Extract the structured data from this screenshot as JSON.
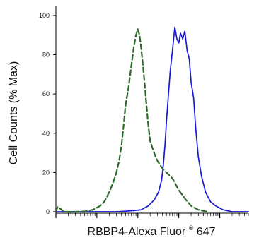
{
  "chart_data": {
    "type": "line",
    "title": "",
    "xlabel": "RBBP4-Alexa Fluor",
    "xlabel_superscript": "®",
    "xlabel_suffix": " 647",
    "ylabel": "Cell Counts (% Max)",
    "y_ticks": [
      "0",
      "20",
      "40",
      "60",
      "80",
      "100"
    ],
    "ylim": [
      0,
      105
    ],
    "x_scale": "log",
    "xlim": [
      1,
      50000
    ],
    "x_tick_labels_visible": false,
    "grid": false,
    "legend": "none",
    "series": [
      {
        "color": "#1a1ad6",
        "style": "solid",
        "x": [
          1,
          10,
          30,
          70,
          120,
          180,
          250,
          320,
          380,
          420,
          460,
          500,
          560,
          620,
          700,
          800,
          900,
          1000,
          1100,
          1250,
          1400,
          1600,
          1800,
          2000,
          2300,
          2600,
          3000,
          3600,
          4500,
          6000,
          8000,
          12000,
          20000,
          50000
        ],
        "y": [
          0,
          0,
          0,
          0.5,
          1,
          3,
          6,
          10,
          16,
          24,
          34,
          46,
          60,
          72,
          82,
          94,
          88,
          86,
          91,
          88,
          92,
          82,
          78,
          66,
          58,
          42,
          28,
          18,
          10,
          5,
          3,
          1,
          0,
          0
        ]
      },
      {
        "color": "#2a6b2a",
        "style": "dashed",
        "x": [
          1,
          1.1,
          1.3,
          1.6,
          2,
          3,
          5,
          8,
          12,
          15,
          18,
          22,
          26,
          30,
          35,
          40,
          45,
          50,
          60,
          70,
          80,
          90,
          100,
          110,
          120,
          140,
          160,
          180,
          200,
          250,
          300,
          400,
          500,
          700,
          1000,
          1500,
          2000,
          3000,
          5000
        ],
        "y": [
          0,
          2.5,
          1.5,
          0,
          0,
          0,
          0.2,
          1,
          3,
          5,
          8,
          12,
          16,
          20,
          26,
          34,
          44,
          54,
          64,
          75,
          84,
          90,
          93,
          90,
          84,
          70,
          56,
          44,
          36,
          30,
          26,
          22,
          20,
          17,
          11,
          6,
          3,
          1,
          0
        ]
      }
    ]
  }
}
